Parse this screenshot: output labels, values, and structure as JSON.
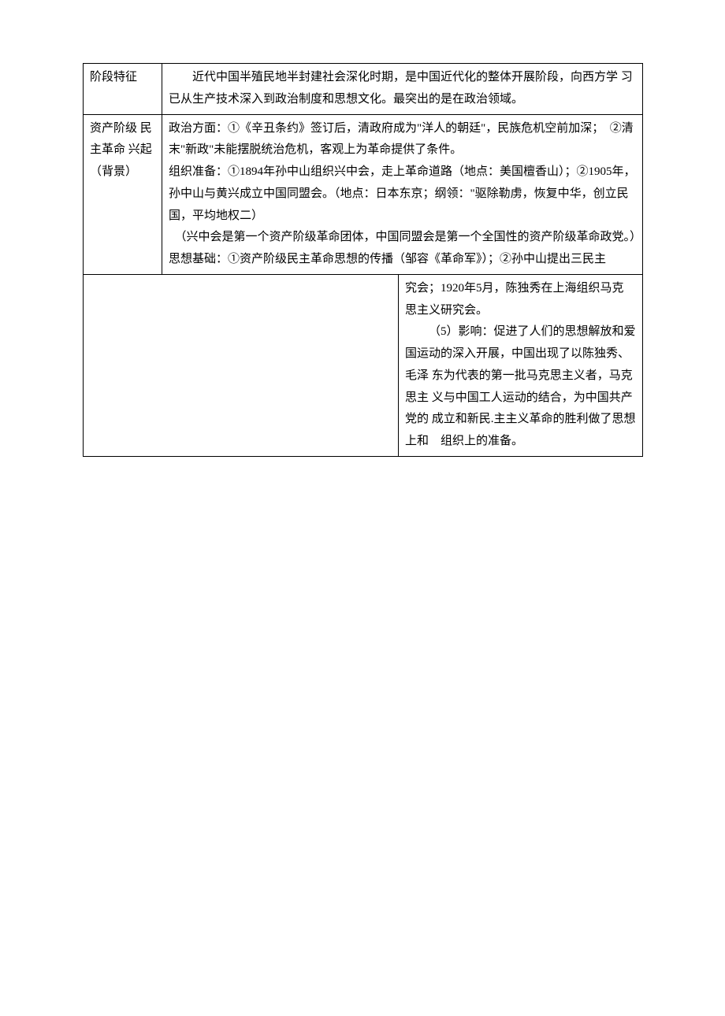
{
  "table": {
    "rows": [
      {
        "left": "阶段特征",
        "right": "　　近代中国半殖民地半封建社会深化时期，是中国近代化的整体开展阶段，向西方学 习已从生产技术深入到政治制度和思想文化。最突出的是在政治领域。"
      },
      {
        "left": "资产阶级 民主革命 兴起（背景）",
        "right_p1": "政治方面：①《辛丑条约》签订后，清政府成为\"洋人的朝廷\"，民族危机空前加深；　②清末\"新政\"未能摆脱统治危机，客观上为革命提供了条件。",
        "right_p2": "组织准备：①1894年孙中山组织兴中会，走上革命道路（地点：美国檀香山）；②1905年，孙中山与黄兴成立中国同盟会。（地点：日本东京；纲领：\"驱除勒虏，恢复中华，创立民国，平均地权二）",
        "right_p3": "　（兴中会是第一个资产阶级革命团体，中国同盟会是第一个全国性的资产阶级革命政党。）",
        "right_p4": "思想基础：①资产阶级民主革命思想的传播（邹容《革命军》）；②孙中山提出三民主"
      },
      {
        "right": "究会；1920年5月，陈独秀在上海组织马克 思主义研究会。",
        "right_p2": "（5）影响：促进了人们的思想解放和爱国运动的深入开展，中国出现了以陈独秀、毛泽 东为代表的第一批马克思主义者，马克思主 义与中国工人运动的结合，为中国共产党的 成立和新民.主主义革命的胜利做了思想上和　组织上的准备。"
      }
    ]
  }
}
